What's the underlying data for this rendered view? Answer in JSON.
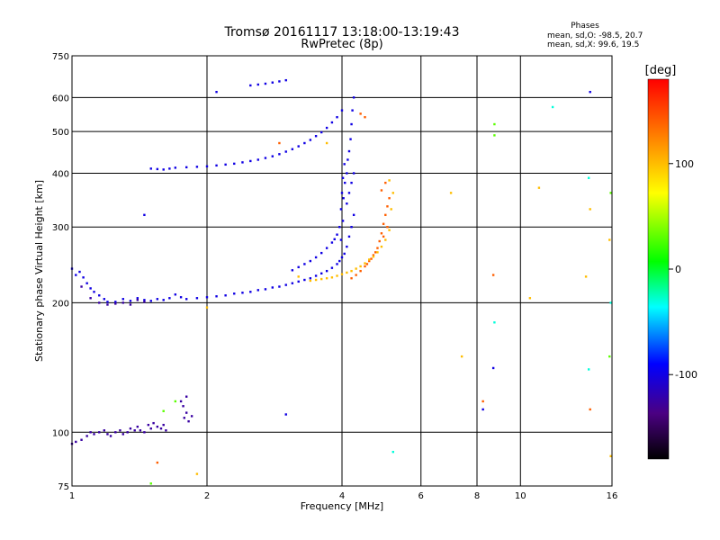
{
  "chart_data": {
    "type": "scatter",
    "title": "Tromsø 20161117 13:18:00-13:19:43",
    "subtitle": "RwPretec (8p)",
    "xlabel": "Frequency [MHz]",
    "ylabel": "Stationary phase Virtual Height [km]",
    "x_scale": "log",
    "y_scale": "log",
    "xlim": [
      1,
      16
    ],
    "ylim": [
      75,
      750
    ],
    "x_ticks": [
      1,
      2,
      4,
      6,
      8,
      10,
      16
    ],
    "x_tick_labels": [
      "1",
      "2",
      "4",
      "6",
      "8",
      "10",
      "16"
    ],
    "y_ticks": [
      75,
      100,
      200,
      300,
      400,
      500,
      600,
      750
    ],
    "y_tick_labels": [
      "75",
      "100",
      "200",
      "300",
      "400",
      "500",
      "600",
      "750"
    ],
    "grid": true,
    "info": {
      "title": "Phases",
      "line1": "mean, sd,O: -98.5, 20.7",
      "line2": "mean, sd,X:  99.6, 19.5"
    },
    "colorbar": {
      "label": "[deg]",
      "range": [
        -180,
        180
      ],
      "ticks": [
        100,
        0,
        -100
      ],
      "tick_labels": [
        "100",
        "0",
        "-100"
      ]
    },
    "series": [
      {
        "phase": -100,
        "points": [
          [
            1.0,
            240
          ],
          [
            1.02,
            232
          ],
          [
            1.04,
            236
          ],
          [
            1.06,
            229
          ],
          [
            1.08,
            222
          ],
          [
            1.1,
            216
          ],
          [
            1.12,
            212
          ],
          [
            1.15,
            208
          ],
          [
            1.18,
            204
          ],
          [
            1.2,
            201
          ],
          [
            1.25,
            201
          ],
          [
            1.3,
            204
          ],
          [
            1.35,
            202
          ],
          [
            1.4,
            205
          ],
          [
            1.45,
            203
          ],
          [
            1.5,
            202
          ],
          [
            1.55,
            204
          ],
          [
            1.6,
            203
          ],
          [
            1.65,
            205
          ],
          [
            1.7,
            209
          ],
          [
            1.75,
            206
          ],
          [
            1.8,
            204
          ],
          [
            1.9,
            205
          ],
          [
            2.0,
            206
          ],
          [
            2.1,
            207
          ],
          [
            2.2,
            208
          ],
          [
            2.3,
            210
          ],
          [
            2.4,
            211
          ],
          [
            2.5,
            212
          ],
          [
            2.6,
            214
          ],
          [
            2.7,
            215
          ],
          [
            2.8,
            217
          ],
          [
            2.9,
            218
          ],
          [
            3.0,
            220
          ],
          [
            3.1,
            222
          ],
          [
            3.2,
            224
          ],
          [
            3.3,
            226
          ],
          [
            3.4,
            228
          ],
          [
            3.5,
            231
          ],
          [
            3.6,
            234
          ],
          [
            3.7,
            237
          ],
          [
            3.8,
            241
          ],
          [
            3.9,
            246
          ],
          [
            3.95,
            250
          ],
          [
            4.0,
            255
          ],
          [
            4.05,
            260
          ],
          [
            4.1,
            270
          ],
          [
            4.15,
            285
          ],
          [
            4.2,
            300
          ],
          [
            4.25,
            320
          ],
          [
            3.1,
            238
          ],
          [
            3.2,
            242
          ],
          [
            3.3,
            246
          ],
          [
            3.4,
            250
          ],
          [
            3.5,
            255
          ],
          [
            3.6,
            261
          ],
          [
            3.7,
            268
          ],
          [
            3.8,
            276
          ],
          [
            3.85,
            281
          ],
          [
            3.9,
            288
          ],
          [
            3.95,
            300
          ],
          [
            3.98,
            330
          ],
          [
            4.0,
            360
          ],
          [
            4.02,
            390
          ],
          [
            4.05,
            420
          ],
          [
            4.02,
            310
          ],
          [
            3.98,
            280
          ],
          [
            4.03,
            350
          ],
          [
            4.06,
            380
          ],
          [
            4.1,
            400
          ],
          [
            4.12,
            430
          ],
          [
            4.15,
            450
          ],
          [
            4.18,
            480
          ],
          [
            4.2,
            520
          ],
          [
            4.22,
            560
          ],
          [
            4.25,
            600
          ],
          [
            4.1,
            340
          ],
          [
            4.15,
            360
          ],
          [
            4.2,
            380
          ],
          [
            4.25,
            400
          ],
          [
            1.5,
            410
          ],
          [
            1.55,
            409
          ],
          [
            1.6,
            408
          ],
          [
            1.65,
            410
          ],
          [
            1.7,
            412
          ],
          [
            1.8,
            413
          ],
          [
            1.9,
            414
          ],
          [
            2.0,
            415
          ],
          [
            2.1,
            417
          ],
          [
            2.2,
            419
          ],
          [
            2.3,
            421
          ],
          [
            2.4,
            424
          ],
          [
            2.5,
            427
          ],
          [
            2.6,
            430
          ],
          [
            2.7,
            434
          ],
          [
            2.8,
            438
          ],
          [
            2.9,
            443
          ],
          [
            3.0,
            449
          ],
          [
            3.1,
            455
          ],
          [
            3.2,
            462
          ],
          [
            3.3,
            470
          ],
          [
            3.4,
            478
          ],
          [
            3.5,
            488
          ],
          [
            3.6,
            498
          ],
          [
            3.7,
            510
          ],
          [
            3.8,
            525
          ],
          [
            3.9,
            540
          ],
          [
            4.0,
            560
          ],
          [
            2.5,
            640
          ],
          [
            2.6,
            643
          ],
          [
            2.7,
            646
          ],
          [
            2.8,
            650
          ],
          [
            2.9,
            654
          ],
          [
            3.0,
            658
          ],
          [
            2.1,
            618
          ],
          [
            1.45,
            320
          ],
          [
            3.0,
            110
          ],
          [
            8.7,
            141
          ],
          [
            8.25,
            113
          ],
          [
            14.3,
            618
          ]
        ]
      },
      {
        "phase": -125,
        "points": [
          [
            1.0,
            94
          ],
          [
            1.02,
            95
          ],
          [
            1.05,
            96
          ],
          [
            1.08,
            98
          ],
          [
            1.1,
            100
          ],
          [
            1.12,
            99
          ],
          [
            1.15,
            100
          ],
          [
            1.18,
            101
          ],
          [
            1.2,
            99
          ],
          [
            1.22,
            98
          ],
          [
            1.25,
            100
          ],
          [
            1.28,
            101
          ],
          [
            1.3,
            99
          ],
          [
            1.33,
            100
          ],
          [
            1.35,
            102
          ],
          [
            1.38,
            101
          ],
          [
            1.4,
            103
          ],
          [
            1.42,
            101
          ],
          [
            1.45,
            100
          ],
          [
            1.48,
            104
          ],
          [
            1.5,
            102
          ],
          [
            1.52,
            105
          ],
          [
            1.55,
            103
          ],
          [
            1.58,
            102
          ],
          [
            1.6,
            104
          ],
          [
            1.62,
            101
          ],
          [
            1.78,
            108
          ],
          [
            1.8,
            111
          ],
          [
            1.82,
            106
          ],
          [
            1.85,
            109
          ],
          [
            1.77,
            115
          ],
          [
            1.8,
            121
          ],
          [
            1.75,
            118
          ],
          [
            1.05,
            218
          ],
          [
            1.1,
            205
          ],
          [
            1.15,
            200
          ],
          [
            1.2,
            198
          ],
          [
            1.25,
            199
          ],
          [
            1.3,
            200
          ],
          [
            1.35,
            198
          ],
          [
            1.4,
            203
          ],
          [
            1.45,
            201
          ]
        ]
      },
      {
        "phase": 140,
        "points": [
          [
            4.2,
            228
          ],
          [
            4.3,
            232
          ],
          [
            4.4,
            237
          ],
          [
            4.5,
            243
          ],
          [
            4.6,
            250
          ],
          [
            4.7,
            258
          ],
          [
            4.8,
            268
          ],
          [
            4.85,
            278
          ],
          [
            4.9,
            290
          ],
          [
            4.95,
            305
          ],
          [
            5.0,
            320
          ],
          [
            5.05,
            335
          ],
          [
            5.1,
            350
          ],
          [
            5.0,
            380
          ],
          [
            4.9,
            365
          ],
          [
            5.05,
            300
          ],
          [
            4.95,
            285
          ],
          [
            4.75,
            262
          ],
          [
            4.55,
            246
          ],
          [
            4.65,
            253
          ],
          [
            4.4,
            550
          ],
          [
            4.5,
            540
          ],
          [
            2.9,
            470
          ],
          [
            1.55,
            85
          ],
          [
            8.7,
            232
          ],
          [
            8.25,
            118
          ],
          [
            14.3,
            113
          ]
        ]
      },
      {
        "phase": 100,
        "points": [
          [
            3.4,
            225
          ],
          [
            3.5,
            226
          ],
          [
            3.6,
            227
          ],
          [
            3.7,
            228
          ],
          [
            3.8,
            229
          ],
          [
            3.9,
            231
          ],
          [
            4.0,
            233
          ],
          [
            4.1,
            235
          ],
          [
            4.2,
            237
          ],
          [
            4.3,
            240
          ],
          [
            4.4,
            243
          ],
          [
            4.5,
            247
          ],
          [
            4.6,
            252
          ],
          [
            4.7,
            256
          ],
          [
            4.8,
            262
          ],
          [
            4.9,
            270
          ],
          [
            5.0,
            280
          ],
          [
            5.1,
            295
          ],
          [
            5.15,
            330
          ],
          [
            5.2,
            360
          ],
          [
            5.1,
            385
          ],
          [
            3.2,
            230
          ],
          [
            2.0,
            195
          ],
          [
            1.9,
            80
          ],
          [
            7.0,
            360
          ],
          [
            7.4,
            150
          ],
          [
            11.0,
            370
          ],
          [
            14.0,
            230
          ],
          [
            14.3,
            330
          ],
          [
            15.8,
            280
          ],
          [
            10.5,
            205
          ],
          [
            15.9,
            88
          ],
          [
            3.7,
            470
          ]
        ]
      },
      {
        "phase": 30,
        "points": [
          [
            1.7,
            118
          ],
          [
            1.6,
            112
          ],
          [
            1.5,
            76
          ],
          [
            8.75,
            520
          ],
          [
            8.75,
            490
          ],
          [
            15.8,
            150
          ],
          [
            15.9,
            360
          ]
        ]
      },
      {
        "phase": -30,
        "points": [
          [
            8.75,
            180
          ],
          [
            5.2,
            90
          ],
          [
            11.8,
            570
          ],
          [
            14.2,
            390
          ],
          [
            14.2,
            140
          ],
          [
            15.9,
            200
          ]
        ]
      }
    ]
  }
}
